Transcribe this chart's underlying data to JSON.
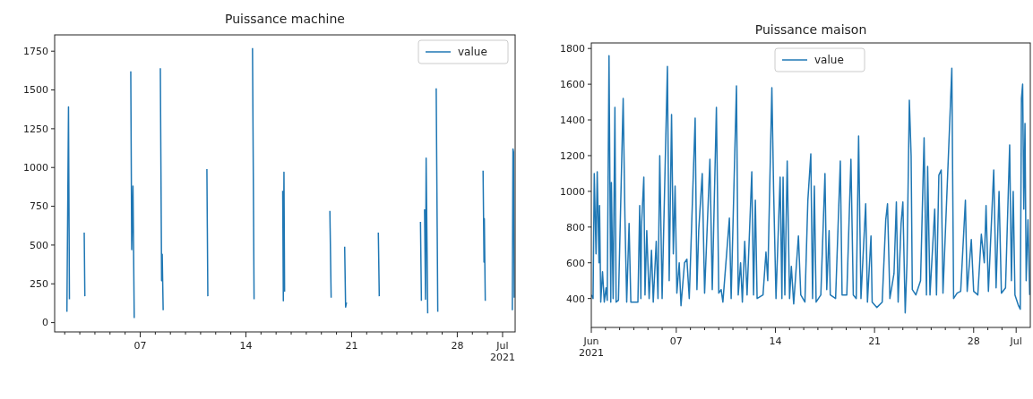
{
  "chart_data": [
    {
      "type": "line",
      "title": "Puissance machine",
      "legend": "top right",
      "x": [
        "2021-06-02T03:30",
        "2021-06-02T06:00",
        "2021-06-02T07:30",
        "2021-06-02T12:00",
        "2021-06-03T07:00",
        "2021-06-03T08:00",
        "2021-06-03T12:00",
        "2021-06-06T09:00",
        "2021-06-06T10:30",
        "2021-06-06T12:30",
        "2021-06-06T14:30",
        "2021-06-06T18:00",
        "2021-06-08T08:00",
        "2021-06-08T10:00",
        "2021-06-08T11:00",
        "2021-06-08T12:30",
        "2021-06-08T18:00",
        "2021-06-11T10:00",
        "2021-06-11T11:30",
        "2021-06-11T18:00",
        "2021-06-14T10:30",
        "2021-06-14T13:00",
        "2021-06-14T18:00",
        "2021-06-16T10:30",
        "2021-06-16T11:30",
        "2021-06-16T12:30",
        "2021-06-16T13:30",
        "2021-06-16T18:00",
        "2021-06-19T13:30",
        "2021-06-19T15:30",
        "2021-06-19T20:00",
        "2021-06-20T13:00",
        "2021-06-20T14:30",
        "2021-06-20T16:00",
        "2021-06-20T20:00",
        "2021-06-22T18:30",
        "2021-06-22T20:00",
        "2021-06-23T00:00",
        "2021-06-25T13:30",
        "2021-06-25T15:00",
        "2021-06-25T18:00",
        "2021-06-25T20:00",
        "2021-06-25T21:30",
        "2021-06-25T22:30",
        "2021-06-26T01:00",
        "2021-06-26T06:00",
        "2021-06-26T14:30",
        "2021-06-26T17:00",
        "2021-06-26T20:00",
        "2021-06-29T17:00",
        "2021-06-29T18:30",
        "2021-06-29T19:00",
        "2021-06-29T20:30",
        "2021-06-30T00:00",
        "2021-07-01T15:30",
        "2021-07-01T16:30",
        "2021-07-01T17:30",
        "2021-07-01T18:30"
      ],
      "series": [
        {
          "name": "value",
          "color": "#1f77b4",
          "values": [
            70,
            1390,
            150,
            null,
            580,
            170,
            null,
            1620,
            470,
            880,
            30,
            null,
            1640,
            270,
            440,
            80,
            null,
            990,
            170,
            null,
            1770,
            150,
            null,
            850,
            140,
            970,
            200,
            null,
            720,
            160,
            null,
            490,
            100,
            130,
            null,
            580,
            170,
            null,
            650,
            140,
            null,
            730,
            150,
            1060,
            60,
            null,
            1510,
            70,
            null,
            980,
            390,
            670,
            140,
            null,
            80,
            1120,
            1100,
            160
          ]
        }
      ],
      "xlim": [
        "2021-06-01T08:00",
        "2021-07-01T20:00"
      ],
      "xticks": [
        {
          "value": "2021-06-02",
          "label": null
        },
        {
          "value": "2021-06-03",
          "label": null
        },
        {
          "value": "2021-06-04",
          "label": null
        },
        {
          "value": "2021-06-05",
          "label": null
        },
        {
          "value": "2021-06-06",
          "label": null
        },
        {
          "value": "2021-06-07",
          "label": "07"
        },
        {
          "value": "2021-06-08",
          "label": null
        },
        {
          "value": "2021-06-09",
          "label": null
        },
        {
          "value": "2021-06-10",
          "label": null
        },
        {
          "value": "2021-06-11",
          "label": null
        },
        {
          "value": "2021-06-12",
          "label": null
        },
        {
          "value": "2021-06-13",
          "label": null
        },
        {
          "value": "2021-06-14",
          "label": "14"
        },
        {
          "value": "2021-06-15",
          "label": null
        },
        {
          "value": "2021-06-16",
          "label": null
        },
        {
          "value": "2021-06-17",
          "label": null
        },
        {
          "value": "2021-06-18",
          "label": null
        },
        {
          "value": "2021-06-19",
          "label": null
        },
        {
          "value": "2021-06-20",
          "label": null
        },
        {
          "value": "2021-06-21",
          "label": "21"
        },
        {
          "value": "2021-06-22",
          "label": null
        },
        {
          "value": "2021-06-23",
          "label": null
        },
        {
          "value": "2021-06-24",
          "label": null
        },
        {
          "value": "2021-06-25",
          "label": null
        },
        {
          "value": "2021-06-26",
          "label": null
        },
        {
          "value": "2021-06-27",
          "label": null
        },
        {
          "value": "2021-06-28",
          "label": "28"
        },
        {
          "value": "2021-06-29",
          "label": null
        },
        {
          "value": "2021-06-30",
          "label": null
        },
        {
          "value": "2021-07-01",
          "label": "Jul\n2021"
        }
      ],
      "ylim": [
        -60,
        1855
      ],
      "yticks": [
        0,
        250,
        500,
        750,
        1000,
        1250,
        1500,
        1750
      ]
    },
    {
      "type": "line",
      "title": "Puissance maison",
      "legend": "top",
      "x": [
        "2021-06-01T00:00",
        "2021-06-01T03:00",
        "2021-06-01T05:00",
        "2021-06-01T08:00",
        "2021-06-01T10:00",
        "2021-06-01T13:00",
        "2021-06-01T14:00",
        "2021-06-01T16:00",
        "2021-06-01T19:00",
        "2021-06-01T22:00",
        "2021-06-02T01:00",
        "2021-06-02T03:00",
        "2021-06-02T06:00",
        "2021-06-02T09:00",
        "2021-06-02T10:00",
        "2021-06-02T13:00",
        "2021-06-02T16:00",
        "2021-06-02T18:00",
        "2021-06-02T22:00",
        "2021-06-03T06:00",
        "2021-06-03T09:00",
        "2021-06-03T12:00",
        "2021-06-03T16:00",
        "2021-06-03T19:00",
        "2021-06-04T07:00",
        "2021-06-04T10:00",
        "2021-06-04T12:00",
        "2021-06-04T13:00",
        "2021-06-04T17:00",
        "2021-06-04T19:00",
        "2021-06-04T22:00",
        "2021-06-05T02:00",
        "2021-06-05T06:00",
        "2021-06-05T09:00",
        "2021-06-05T14:00",
        "2021-06-05T17:00",
        "2021-06-05T20:00",
        "2021-06-06T00:00",
        "2021-06-06T09:00",
        "2021-06-06T12:00",
        "2021-06-06T16:00",
        "2021-06-06T19:00",
        "2021-06-06T22:00",
        "2021-06-07T01:00",
        "2021-06-07T05:00",
        "2021-06-07T08:00",
        "2021-06-07T14:00",
        "2021-06-07T18:00",
        "2021-06-07T22:00",
        "2021-06-08T08:00",
        "2021-06-08T11:00",
        "2021-06-08T14:00",
        "2021-06-08T20:00",
        "2021-06-09T00:00",
        "2021-06-09T09:00",
        "2021-06-09T13:00",
        "2021-06-09T20:00",
        "2021-06-10T00:00",
        "2021-06-10T04:00",
        "2021-06-10T07:00",
        "2021-06-10T18:00",
        "2021-06-10T21:00",
        "2021-06-11T06:00",
        "2021-06-11T09:00",
        "2021-06-11T13:00",
        "2021-06-11T16:00",
        "2021-06-11T20:00",
        "2021-06-12T00:00",
        "2021-06-12T08:00",
        "2021-06-12T11:00",
        "2021-06-12T14:00",
        "2021-06-12T17:00",
        "2021-06-13T03:00",
        "2021-06-13T08:00",
        "2021-06-13T11:00",
        "2021-06-13T18:00",
        "2021-06-13T21:00",
        "2021-06-14T01:00",
        "2021-06-14T08:00",
        "2021-06-14T11:00",
        "2021-06-14T13:00",
        "2021-06-14T16:00",
        "2021-06-14T20:00",
        "2021-06-15T00:00",
        "2021-06-15T03:00",
        "2021-06-15T07:00",
        "2021-06-15T15:00",
        "2021-06-15T19:00",
        "2021-06-16T02:00",
        "2021-06-16T07:00",
        "2021-06-16T12:00",
        "2021-06-16T15:00",
        "2021-06-16T18:00",
        "2021-06-16T21:00",
        "2021-06-17T05:00",
        "2021-06-17T12:00",
        "2021-06-17T15:00",
        "2021-06-17T19:00",
        "2021-06-17T21:00",
        "2021-06-18T06:00",
        "2021-06-18T14:00",
        "2021-06-18T17:00",
        "2021-06-19T01:00",
        "2021-06-19T08:00",
        "2021-06-19T12:00",
        "2021-06-19T17:00",
        "2021-06-19T21:00",
        "2021-06-20T01:00",
        "2021-06-20T09:00",
        "2021-06-20T12:00",
        "2021-06-20T18:00",
        "2021-06-20T20:00",
        "2021-06-21T04:00",
        "2021-06-21T13:00",
        "2021-06-21T19:00",
        "2021-06-21T22:00",
        "2021-06-22T02:00",
        "2021-06-22T09:00",
        "2021-06-22T13:00",
        "2021-06-22T16:00",
        "2021-06-22T21:00",
        "2021-06-23T00:00",
        "2021-06-23T04:00",
        "2021-06-23T07:00",
        "2021-06-23T11:00",
        "2021-06-23T14:00",
        "2021-06-23T16:00",
        "2021-06-23T22:00",
        "2021-06-24T06:00",
        "2021-06-24T12:00",
        "2021-06-24T16:00",
        "2021-06-24T18:00",
        "2021-06-24T22:00",
        "2021-06-25T06:00",
        "2021-06-25T09:00",
        "2021-06-25T13:00",
        "2021-06-25T17:00",
        "2021-06-25T20:00",
        "2021-06-26T07:00",
        "2021-06-26T11:00",
        "2021-06-26T14:00",
        "2021-06-26T20:00",
        "2021-06-27T02:00",
        "2021-06-27T10:00",
        "2021-06-27T13:00",
        "2021-06-27T20:00",
        "2021-06-28T00:00",
        "2021-06-28T07:00",
        "2021-06-28T13:00",
        "2021-06-28T18:00",
        "2021-06-28T21:00",
        "2021-06-29T01:00",
        "2021-06-29T10:00",
        "2021-06-29T14:00",
        "2021-06-29T19:00",
        "2021-06-29T23:00",
        "2021-06-30T06:00",
        "2021-06-30T13:00",
        "2021-06-30T16:00",
        "2021-06-30T19:00",
        "2021-06-30T22:00",
        "2021-07-01T04:00",
        "2021-07-01T07:00",
        "2021-07-01T09:00",
        "2021-07-01T11:00",
        "2021-07-01T13:00",
        "2021-07-01T15:00",
        "2021-07-01T17:00",
        "2021-07-01T20:00",
        "2021-07-01T23:00"
      ],
      "series": [
        {
          "name": "value",
          "color": "#1f77b4",
          "values": [
            420,
            400,
            1100,
            650,
            1110,
            600,
            920,
            380,
            550,
            380,
            460,
            390,
            1760,
            380,
            1050,
            400,
            1470,
            380,
            390,
            1520,
            850,
            380,
            820,
            380,
            380,
            920,
            400,
            800,
            1080,
            420,
            780,
            400,
            670,
            380,
            720,
            400,
            1200,
            400,
            1700,
            500,
            1430,
            650,
            1030,
            430,
            600,
            360,
            600,
            620,
            400,
            1410,
            450,
            780,
            1100,
            430,
            1180,
            450,
            1470,
            430,
            450,
            380,
            850,
            400,
            1590,
            420,
            600,
            380,
            720,
            420,
            1110,
            420,
            950,
            400,
            420,
            660,
            500,
            1580,
            1000,
            400,
            1080,
            400,
            1080,
            420,
            1170,
            400,
            580,
            370,
            750,
            420,
            380,
            950,
            1210,
            400,
            1030,
            380,
            420,
            1100,
            450,
            780,
            420,
            400,
            1170,
            420,
            420,
            1180,
            420,
            400,
            1310,
            400,
            930,
            380,
            750,
            380,
            350,
            380,
            840,
            930,
            400,
            540,
            940,
            380,
            820,
            940,
            320,
            600,
            1510,
            1200,
            450,
            420,
            500,
            1300,
            420,
            1140,
            420,
            900,
            420,
            1090,
            1120,
            430,
            1350,
            1690,
            400,
            430,
            440,
            950,
            440,
            730,
            440,
            420,
            760,
            600,
            920,
            440,
            1120,
            460,
            1000,
            430,
            460,
            1260,
            500,
            1000,
            420,
            360,
            340,
            1520,
            1600,
            900,
            1380,
            500,
            840,
            420
          ]
        }
      ],
      "xlim": [
        "2021-06-01T00:00",
        "2021-07-02T00:00"
      ],
      "xticks": [
        {
          "value": "2021-06-01",
          "label": "Jun\n2021"
        },
        {
          "value": "2021-06-02",
          "label": null
        },
        {
          "value": "2021-06-03",
          "label": null
        },
        {
          "value": "2021-06-04",
          "label": null
        },
        {
          "value": "2021-06-05",
          "label": null
        },
        {
          "value": "2021-06-06",
          "label": null
        },
        {
          "value": "2021-06-07",
          "label": "07"
        },
        {
          "value": "2021-06-08",
          "label": null
        },
        {
          "value": "2021-06-09",
          "label": null
        },
        {
          "value": "2021-06-10",
          "label": null
        },
        {
          "value": "2021-06-11",
          "label": null
        },
        {
          "value": "2021-06-12",
          "label": null
        },
        {
          "value": "2021-06-13",
          "label": null
        },
        {
          "value": "2021-06-14",
          "label": "14"
        },
        {
          "value": "2021-06-15",
          "label": null
        },
        {
          "value": "2021-06-16",
          "label": null
        },
        {
          "value": "2021-06-17",
          "label": null
        },
        {
          "value": "2021-06-18",
          "label": null
        },
        {
          "value": "2021-06-19",
          "label": null
        },
        {
          "value": "2021-06-20",
          "label": null
        },
        {
          "value": "2021-06-21",
          "label": "21"
        },
        {
          "value": "2021-06-22",
          "label": null
        },
        {
          "value": "2021-06-23",
          "label": null
        },
        {
          "value": "2021-06-24",
          "label": null
        },
        {
          "value": "2021-06-25",
          "label": null
        },
        {
          "value": "2021-06-26",
          "label": null
        },
        {
          "value": "2021-06-27",
          "label": null
        },
        {
          "value": "2021-06-28",
          "label": "28"
        },
        {
          "value": "2021-06-29",
          "label": null
        },
        {
          "value": "2021-06-30",
          "label": null
        },
        {
          "value": "2021-07-01",
          "label": "Jul"
        }
      ],
      "ylim": [
        238,
        1831
      ],
      "yticks": [
        400,
        600,
        800,
        1000,
        1200,
        1400,
        1600,
        1800
      ]
    }
  ]
}
